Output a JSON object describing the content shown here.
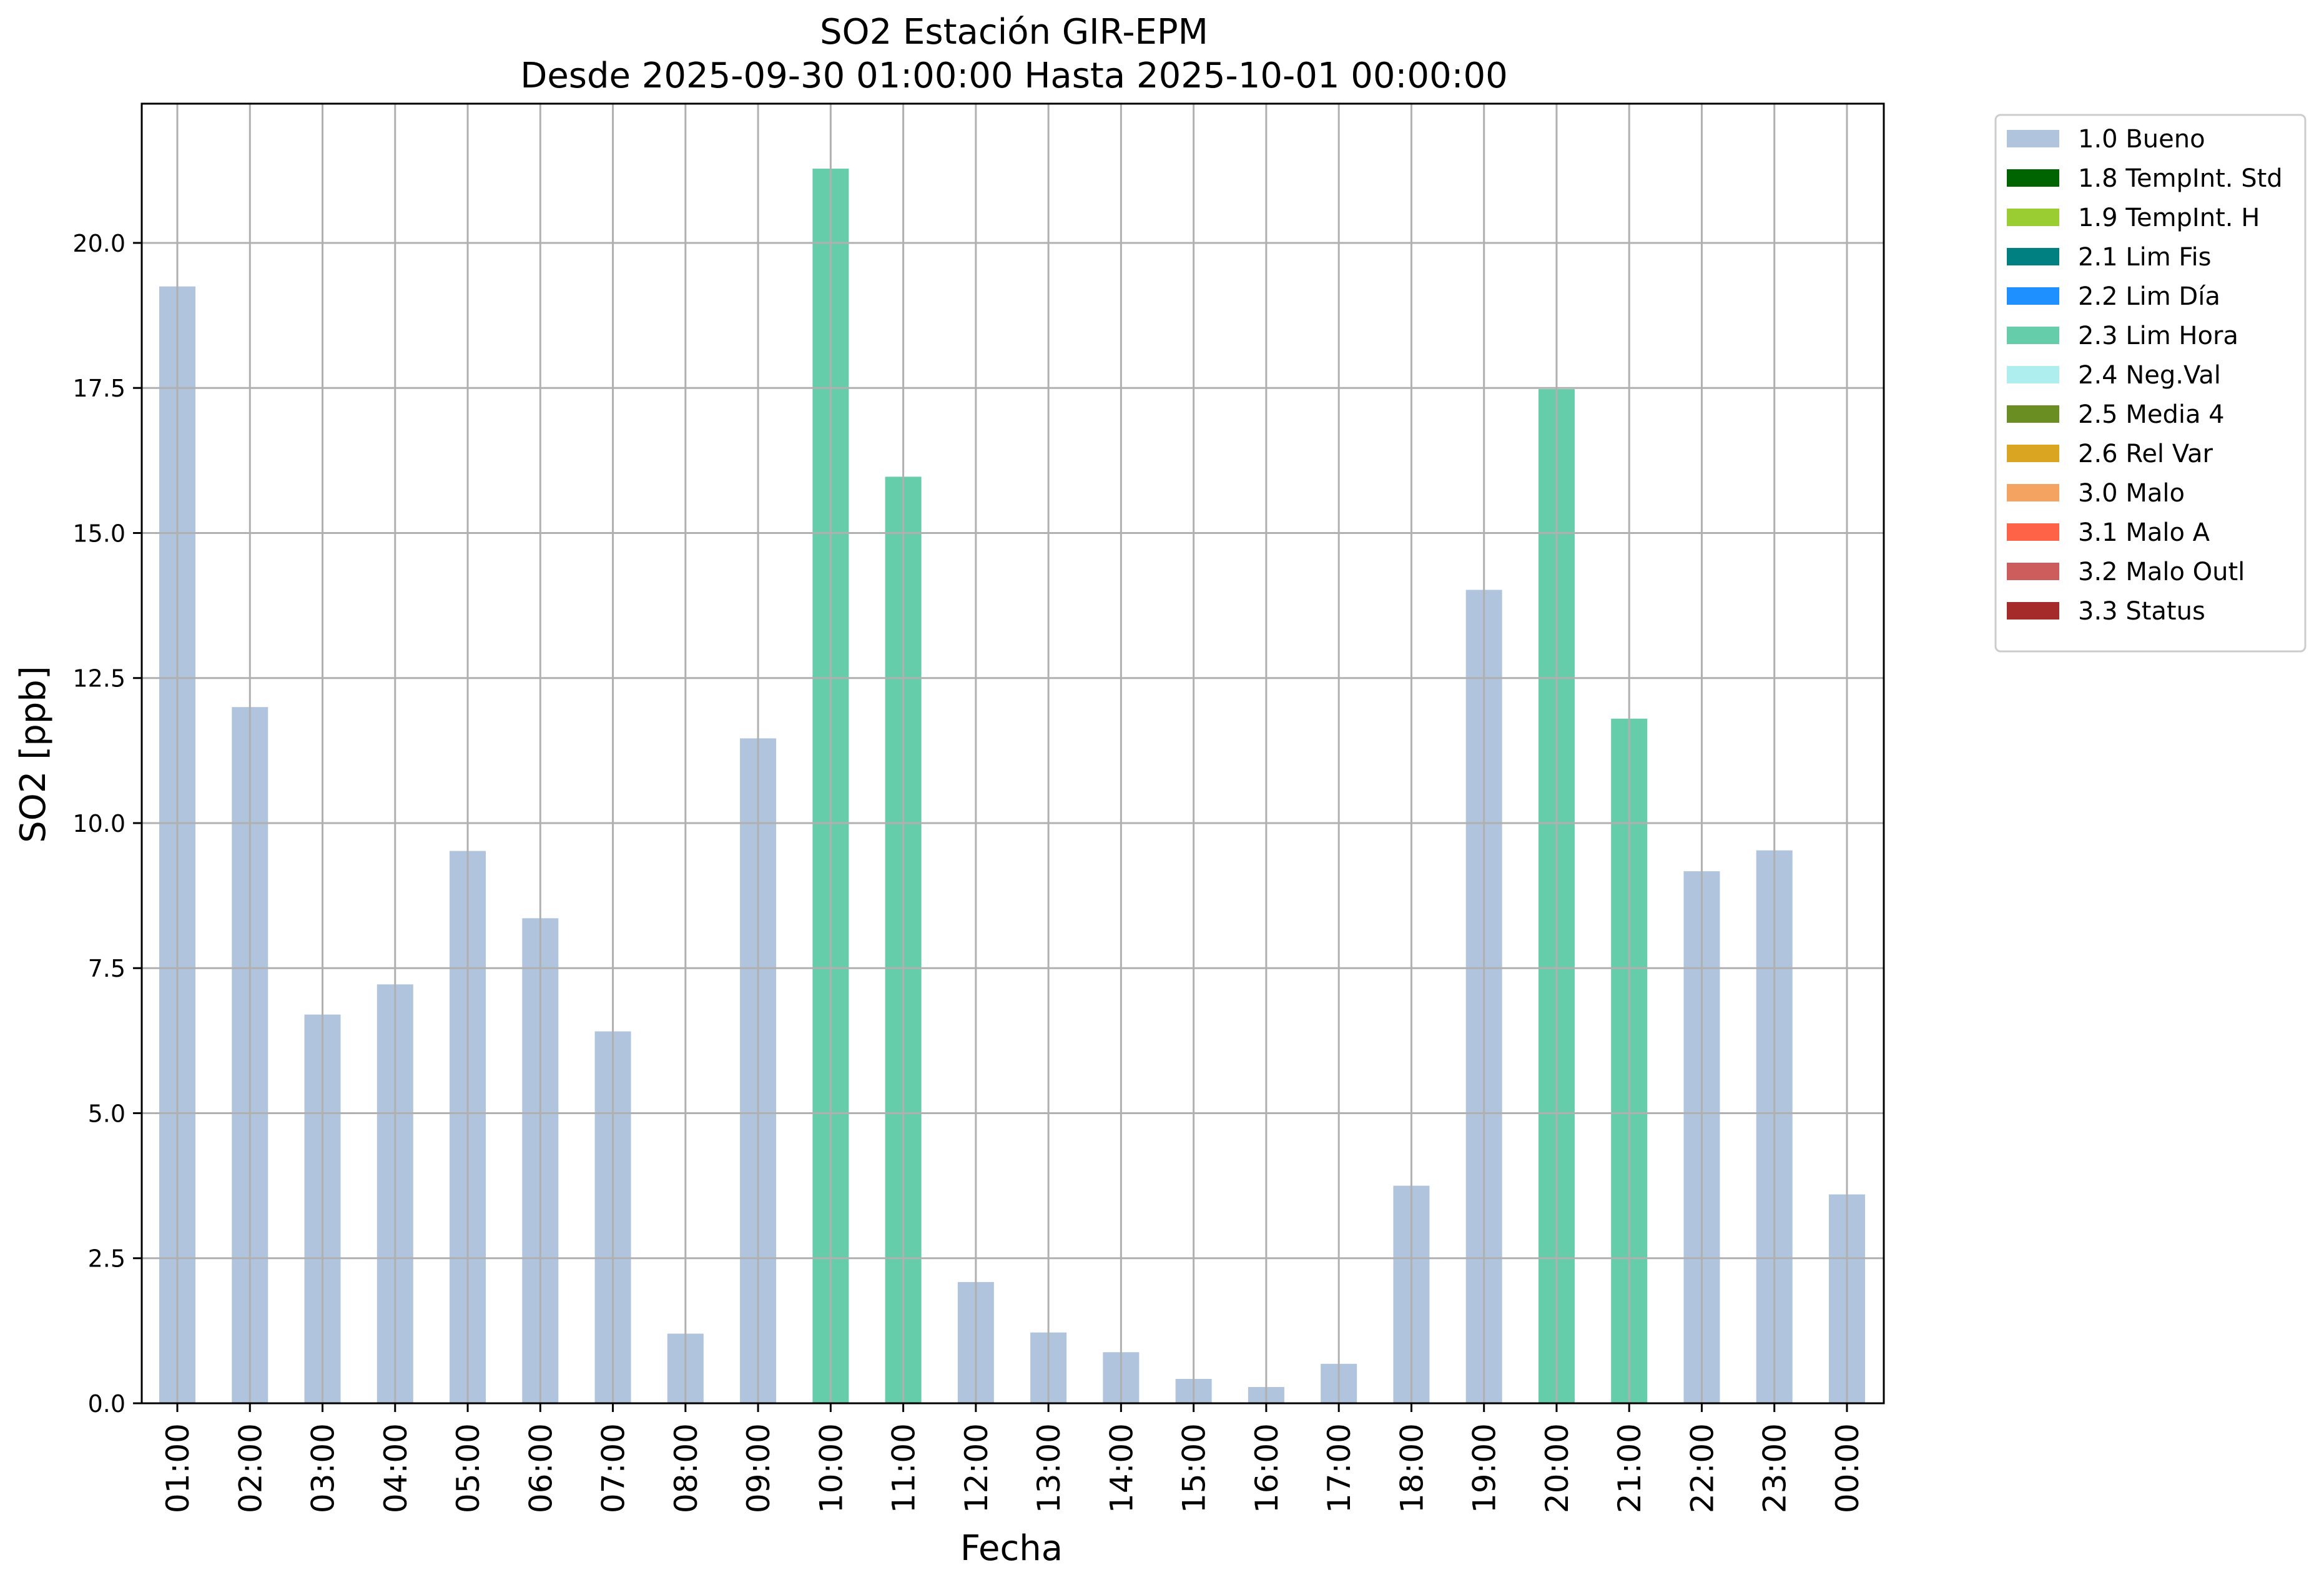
{
  "chart_data": {
    "type": "bar",
    "title": "SO2 Estación GIR-EPM",
    "subtitle": "Desde 2025-09-30 01:00:00 Hasta 2025-10-01 00:00:00",
    "xlabel": "Fecha",
    "ylabel": "SO2 [ppb]",
    "ylim": [
      0,
      22.4
    ],
    "yticks": [
      "0.0",
      "2.5",
      "5.0",
      "7.5",
      "10.0",
      "12.5",
      "15.0",
      "17.5",
      "20.0"
    ],
    "grid": true,
    "legend_position": "outside-top-right",
    "categories": [
      "01:00",
      "02:00",
      "03:00",
      "04:00",
      "05:00",
      "06:00",
      "07:00",
      "08:00",
      "09:00",
      "10:00",
      "11:00",
      "12:00",
      "13:00",
      "14:00",
      "15:00",
      "16:00",
      "17:00",
      "18:00",
      "19:00",
      "20:00",
      "21:00",
      "22:00",
      "23:00",
      "00:00"
    ],
    "values": [
      19.25,
      12.0,
      6.7,
      7.22,
      9.52,
      8.36,
      6.41,
      1.2,
      11.46,
      21.28,
      15.97,
      2.09,
      1.22,
      0.88,
      0.42,
      0.28,
      0.68,
      3.75,
      14.02,
      17.48,
      11.8,
      9.17,
      9.53,
      3.6
    ],
    "flags": [
      "1.0 Bueno",
      "1.0 Bueno",
      "1.0 Bueno",
      "1.0 Bueno",
      "1.0 Bueno",
      "1.0 Bueno",
      "1.0 Bueno",
      "1.0 Bueno",
      "1.0 Bueno",
      "2.3 Lim Hora",
      "2.3 Lim Hora",
      "1.0 Bueno",
      "1.0 Bueno",
      "1.0 Bueno",
      "1.0 Bueno",
      "1.0 Bueno",
      "1.0 Bueno",
      "1.0 Bueno",
      "1.0 Bueno",
      "2.3 Lim Hora",
      "2.3 Lim Hora",
      "1.0 Bueno",
      "1.0 Bueno",
      "1.0 Bueno"
    ],
    "legend": [
      {
        "label": "1.0 Bueno",
        "color": "#b0c4de"
      },
      {
        "label": "1.8 TempInt. Std",
        "color": "#006400"
      },
      {
        "label": "1.9 TempInt. H",
        "color": "#9acd32"
      },
      {
        "label": "2.1 Lim Fis",
        "color": "#008080"
      },
      {
        "label": "2.2 Lim Día",
        "color": "#1e90ff"
      },
      {
        "label": "2.3 Lim Hora",
        "color": "#66cdaa"
      },
      {
        "label": "2.4 Neg.Val",
        "color": "#afeeee"
      },
      {
        "label": "2.5 Media 4",
        "color": "#6b8e23"
      },
      {
        "label": "2.6 Rel Var",
        "color": "#daa520"
      },
      {
        "label": "3.0 Malo",
        "color": "#f4a460"
      },
      {
        "label": "3.1 Malo A",
        "color": "#ff6347"
      },
      {
        "label": "3.2 Malo Outl",
        "color": "#cd5c5c"
      },
      {
        "label": "3.3 Status",
        "color": "#a52a2a"
      }
    ]
  }
}
